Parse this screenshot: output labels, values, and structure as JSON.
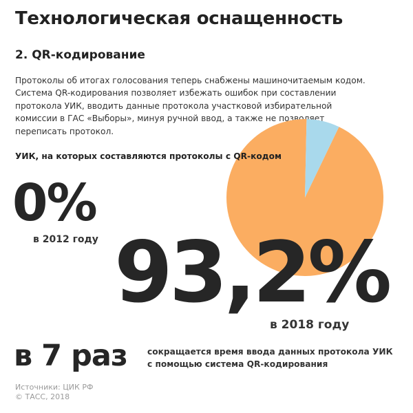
{
  "header": {
    "title": "Технологическая оснащенность",
    "subtitle": "2. QR-кодирование"
  },
  "paragraph_lines": [
    "Протоколы об итогах голосования теперь снабжены машиночитаемым кодом.",
    "Система QR-кодирования позволяет избежать ошибок при составлении",
    "протокола УИК, вводить данные протокола участковой избирательной",
    "комиссии в ГАС «Выборы», минуя ручной ввод, а также не позволяет",
    "переписать протокол."
  ],
  "chart_data": {
    "type": "pie",
    "title": "УИК, на которых составляются протоколы с QR-кодом",
    "slices": [
      {
        "value": 93.2,
        "color": "#fbad61"
      },
      {
        "value": 6.8,
        "color": "#a9d9ec"
      }
    ]
  },
  "stats": {
    "year_2012": {
      "value": "0%",
      "label": "в 2012 году"
    },
    "year_2018": {
      "value": "93,2%",
      "label": "в 2018 году"
    }
  },
  "reduction": {
    "value": "в 7 раз",
    "desc_lines": [
      "сокращается время ввода данных протокола УИК",
      "с помощью система QR-кодирования"
    ]
  },
  "footer": {
    "lines": [
      "Источники: ЦИК РФ",
      "© ТАСС, 2018"
    ]
  },
  "colors": {
    "accent_orange": "#fbad61",
    "accent_blue": "#a9d9ec",
    "text_dark": "#262626",
    "text_muted": "#9a9a9a"
  }
}
